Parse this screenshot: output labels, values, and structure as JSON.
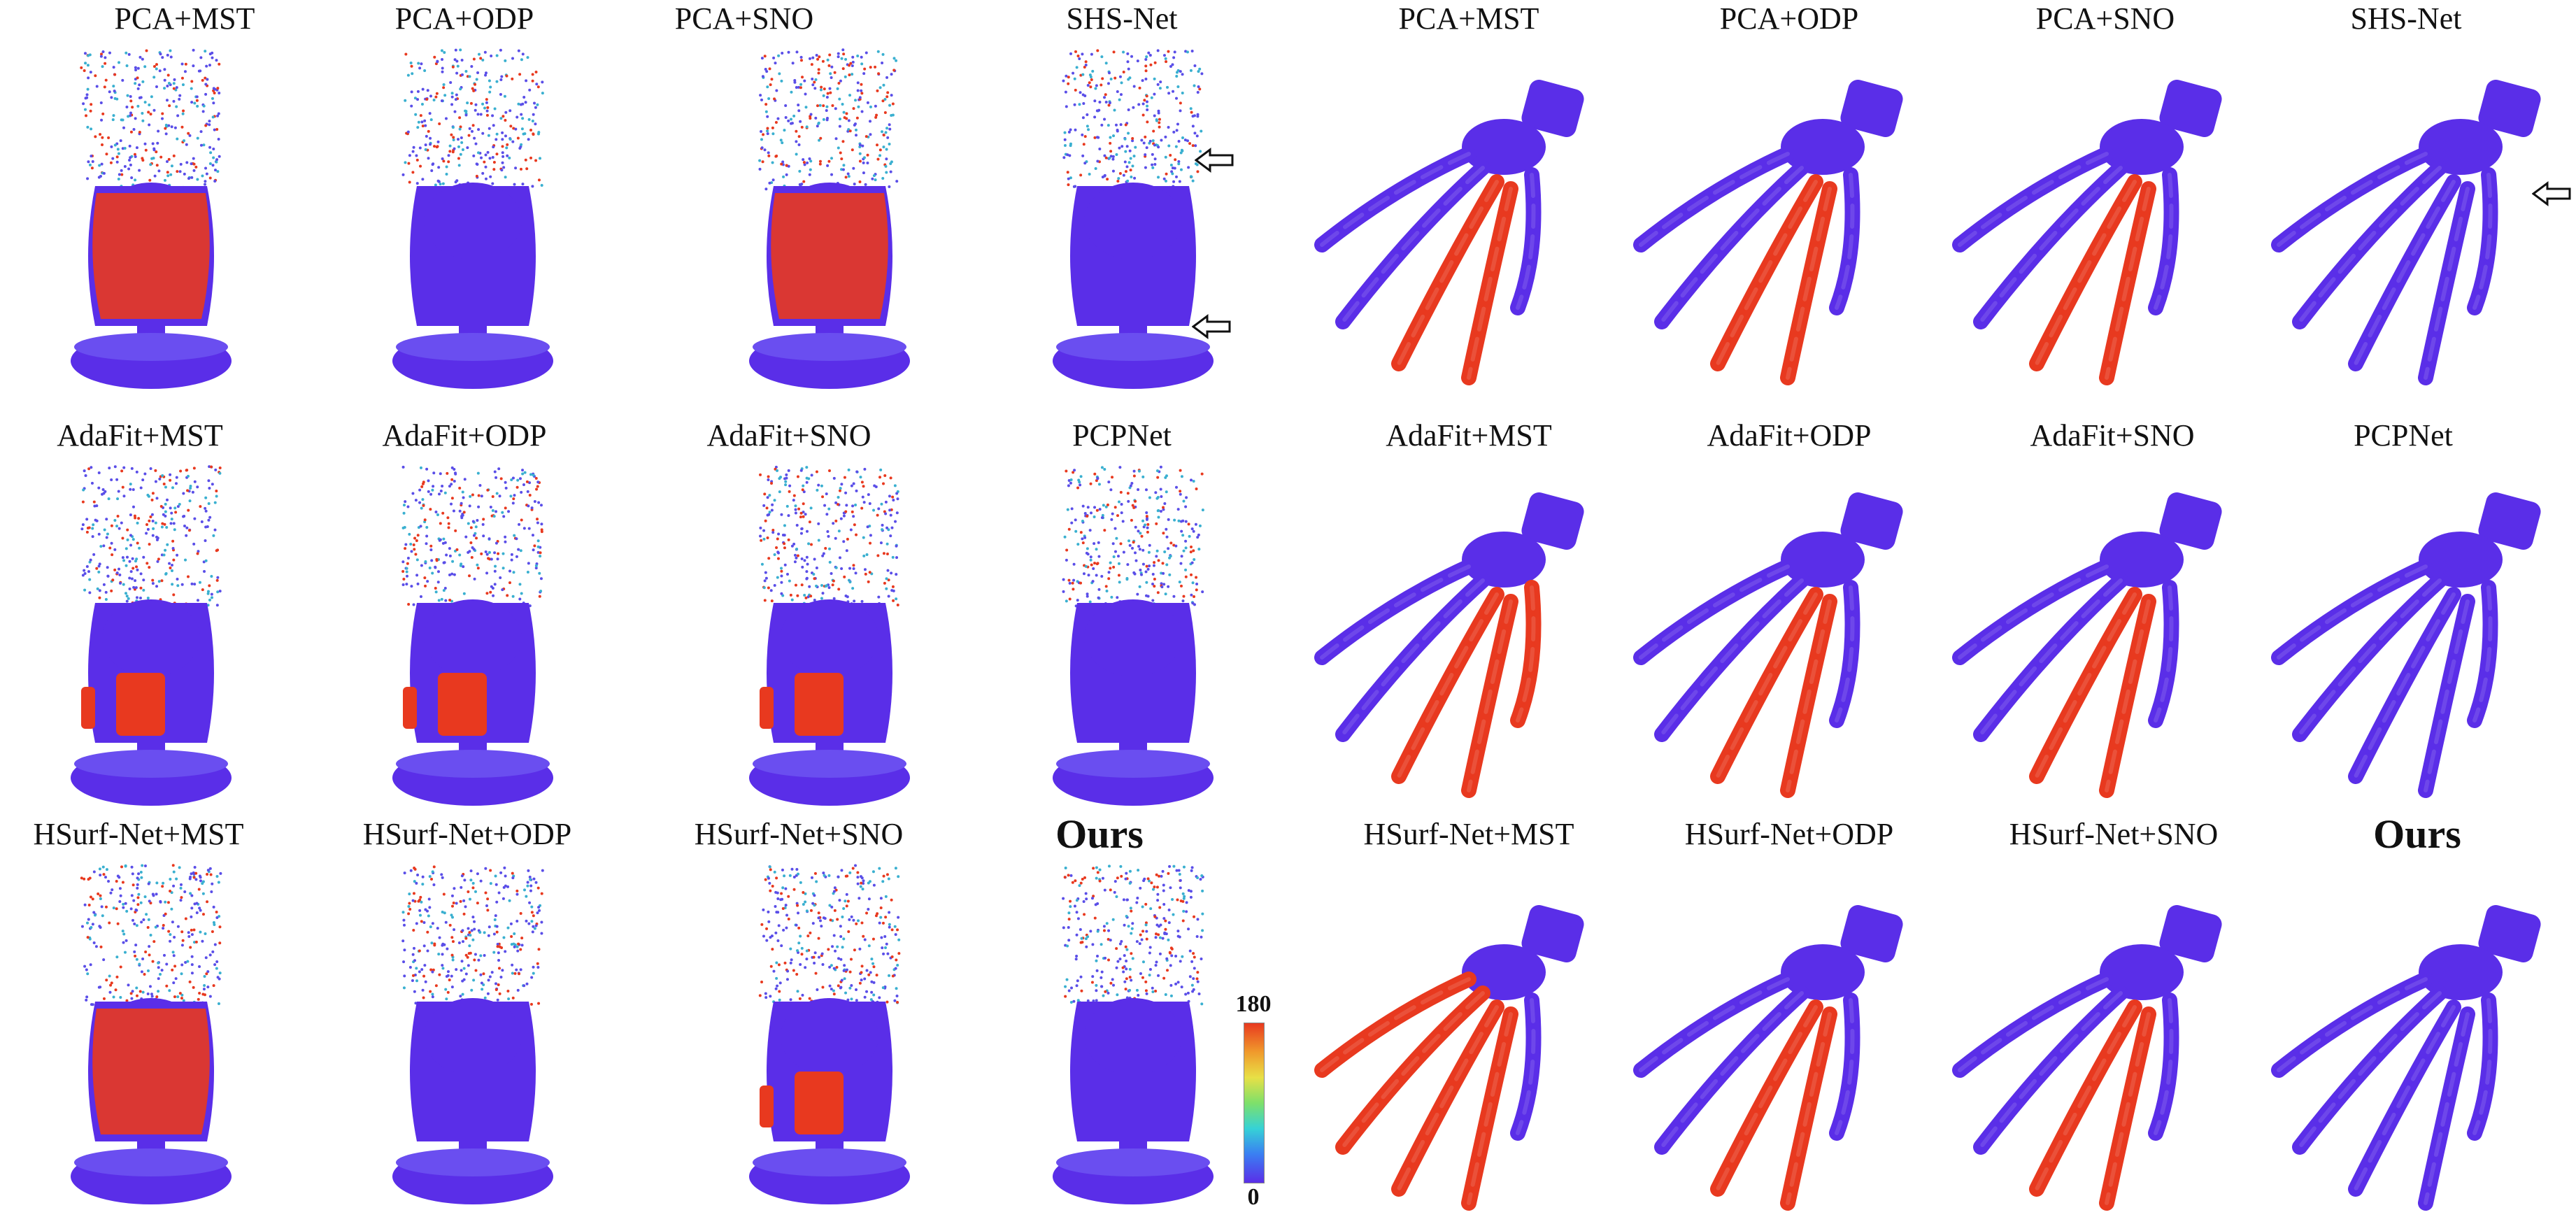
{
  "figure": {
    "left_labels": [
      [
        "PCA+MST",
        "PCA+ODP",
        "PCA+SNO",
        "SHS-Net"
      ],
      [
        "AdaFit+MST",
        "AdaFit+ODP",
        "AdaFit+SNO",
        "PCPNet"
      ],
      [
        "HSurf-Net+MST",
        "HSurf-Net+ODP",
        "HSurf-Net+SNO",
        "Ours"
      ]
    ],
    "right_labels": [
      [
        "PCA+MST",
        "PCA+ODP",
        "PCA+SNO",
        "SHS-Net"
      ],
      [
        "AdaFit+MST",
        "AdaFit+ODP",
        "AdaFit+SNO",
        "PCPNet"
      ],
      [
        "HSurf-Net+MST",
        "HSurf-Net+ODP",
        "HSurf-Net+SNO",
        "Ours"
      ]
    ],
    "colorbar": {
      "max": "180",
      "min": "0"
    },
    "colors": {
      "low": "#5a2ee8",
      "high": "#e8391f",
      "mid": "#3a7ff2"
    }
  }
}
